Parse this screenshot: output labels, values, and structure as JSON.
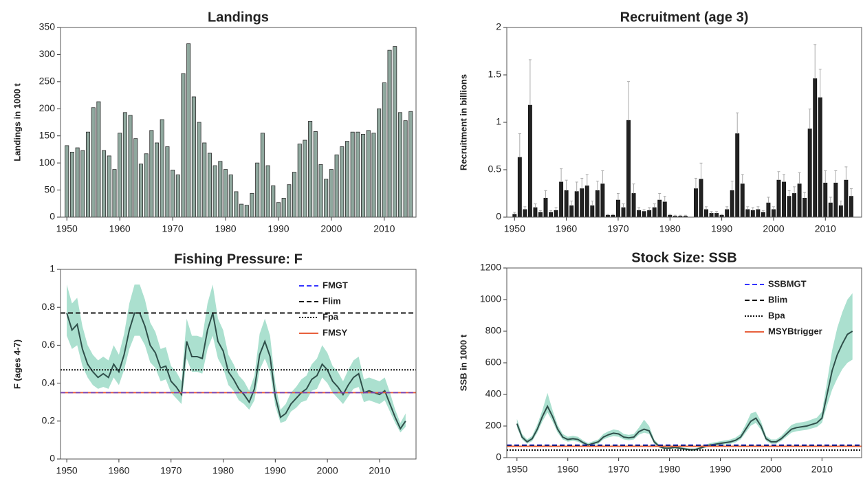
{
  "chart_data": [
    {
      "type": "bar",
      "title": "Landings",
      "ylabel": "Landings in 1000 t",
      "color": "#8fa89e",
      "edge_color": "#2b2b2b",
      "x": [
        1950,
        1951,
        1952,
        1953,
        1954,
        1955,
        1956,
        1957,
        1958,
        1959,
        1960,
        1961,
        1962,
        1963,
        1964,
        1965,
        1966,
        1967,
        1968,
        1969,
        1970,
        1971,
        1972,
        1973,
        1974,
        1975,
        1976,
        1977,
        1978,
        1979,
        1980,
        1981,
        1982,
        1983,
        1984,
        1985,
        1986,
        1987,
        1988,
        1989,
        1990,
        1991,
        1992,
        1993,
        1994,
        1995,
        1996,
        1997,
        1998,
        1999,
        2000,
        2001,
        2002,
        2003,
        2004,
        2005,
        2006,
        2007,
        2008,
        2009,
        2010,
        2011,
        2012,
        2013,
        2014,
        2015
      ],
      "values": [
        132,
        120,
        128,
        123,
        157,
        202,
        213,
        123,
        113,
        88,
        155,
        193,
        188,
        145,
        98,
        117,
        160,
        137,
        180,
        130,
        87,
        78,
        265,
        320,
        222,
        175,
        137,
        118,
        95,
        103,
        88,
        78,
        47,
        24,
        22,
        44,
        100,
        155,
        95,
        58,
        27,
        35,
        60,
        83,
        135,
        142,
        177,
        158,
        97,
        70,
        88,
        115,
        130,
        140,
        157,
        157,
        153,
        160,
        155,
        200,
        248,
        308,
        315,
        193,
        178,
        195
      ],
      "xlim": [
        1948.8,
        2016
      ],
      "ylim": [
        0,
        350
      ],
      "xticks": [
        1950,
        1960,
        1970,
        1980,
        1990,
        2000,
        2010
      ],
      "yticks": [
        0,
        50,
        100,
        150,
        200,
        250,
        300,
        350
      ]
    },
    {
      "type": "bar",
      "title": "Recruitment (age 3)",
      "ylabel": "Recruitment in billions",
      "color": "#222222",
      "edge_color": "#111111",
      "error_color": "#aaaaaa",
      "x": [
        1950,
        1951,
        1952,
        1953,
        1954,
        1955,
        1956,
        1957,
        1958,
        1959,
        1960,
        1961,
        1962,
        1963,
        1964,
        1965,
        1966,
        1967,
        1968,
        1969,
        1970,
        1971,
        1972,
        1973,
        1974,
        1975,
        1976,
        1977,
        1978,
        1979,
        1980,
        1981,
        1982,
        1983,
        1984,
        1985,
        1986,
        1987,
        1988,
        1989,
        1990,
        1991,
        1992,
        1993,
        1994,
        1995,
        1996,
        1997,
        1998,
        1999,
        2000,
        2001,
        2002,
        2003,
        2004,
        2005,
        2006,
        2007,
        2008,
        2009,
        2010,
        2011,
        2012,
        2013,
        2014,
        2015
      ],
      "values": [
        0.03,
        0.63,
        0.08,
        1.18,
        0.1,
        0.05,
        0.2,
        0.05,
        0.07,
        0.37,
        0.28,
        0.12,
        0.27,
        0.3,
        0.33,
        0.12,
        0.28,
        0.35,
        0.02,
        0.02,
        0.18,
        0.1,
        1.02,
        0.25,
        0.07,
        0.06,
        0.07,
        0.1,
        0.18,
        0.16,
        0.02,
        0.01,
        0.01,
        0.01,
        0.0,
        0.3,
        0.4,
        0.08,
        0.04,
        0.04,
        0.02,
        0.08,
        0.28,
        0.88,
        0.35,
        0.08,
        0.07,
        0.08,
        0.05,
        0.15,
        0.08,
        0.39,
        0.37,
        0.22,
        0.25,
        0.35,
        0.2,
        0.93,
        1.46,
        1.26,
        0.36,
        0.15,
        0.36,
        0.12,
        0.39,
        0.22
      ],
      "errors": [
        0.02,
        0.25,
        0.03,
        0.48,
        0.04,
        0.02,
        0.08,
        0.02,
        0.03,
        0.14,
        0.11,
        0.05,
        0.1,
        0.11,
        0.12,
        0.05,
        0.1,
        0.14,
        0.01,
        0.01,
        0.07,
        0.04,
        0.41,
        0.1,
        0.03,
        0.02,
        0.03,
        0.04,
        0.07,
        0.06,
        0.01,
        0.01,
        0.01,
        0.01,
        0.0,
        0.11,
        0.17,
        0.03,
        0.02,
        0.02,
        0.01,
        0.03,
        0.1,
        0.22,
        0.1,
        0.03,
        0.03,
        0.03,
        0.02,
        0.06,
        0.03,
        0.09,
        0.08,
        0.06,
        0.07,
        0.12,
        0.06,
        0.21,
        0.36,
        0.3,
        0.13,
        0.06,
        0.13,
        0.05,
        0.14,
        0.08
      ],
      "xlim": [
        1948.5,
        2017
      ],
      "ylim": [
        0,
        2
      ],
      "xticks": [
        1950,
        1960,
        1970,
        1980,
        1990,
        2000,
        2010
      ],
      "yticks": [
        0,
        0.5,
        1,
        1.5,
        2
      ]
    },
    {
      "type": "line",
      "title": "Fishing Pressure: F",
      "ylabel": "F (ages 4-7)",
      "color": "#2f4f4a",
      "band_color": "#8fd6bf",
      "legend": "upper right",
      "x": [
        1950,
        1951,
        1952,
        1953,
        1954,
        1955,
        1956,
        1957,
        1958,
        1959,
        1960,
        1961,
        1962,
        1963,
        1964,
        1965,
        1966,
        1967,
        1968,
        1969,
        1970,
        1971,
        1972,
        1973,
        1974,
        1975,
        1976,
        1977,
        1978,
        1979,
        1980,
        1981,
        1982,
        1983,
        1984,
        1985,
        1986,
        1987,
        1988,
        1989,
        1990,
        1991,
        1992,
        1993,
        1994,
        1995,
        1996,
        1997,
        1998,
        1999,
        2000,
        2001,
        2002,
        2003,
        2004,
        2005,
        2006,
        2007,
        2008,
        2009,
        2010,
        2011,
        2012,
        2013,
        2014,
        2015
      ],
      "values": [
        0.77,
        0.68,
        0.71,
        0.58,
        0.5,
        0.46,
        0.43,
        0.45,
        0.43,
        0.5,
        0.46,
        0.55,
        0.68,
        0.77,
        0.77,
        0.7,
        0.6,
        0.56,
        0.48,
        0.49,
        0.41,
        0.38,
        0.34,
        0.62,
        0.54,
        0.54,
        0.53,
        0.68,
        0.77,
        0.62,
        0.57,
        0.46,
        0.42,
        0.37,
        0.34,
        0.3,
        0.37,
        0.55,
        0.62,
        0.54,
        0.33,
        0.22,
        0.24,
        0.29,
        0.32,
        0.35,
        0.37,
        0.42,
        0.44,
        0.5,
        0.47,
        0.41,
        0.38,
        0.34,
        0.39,
        0.43,
        0.45,
        0.35,
        0.36,
        0.35,
        0.34,
        0.36,
        0.29,
        0.22,
        0.16,
        0.2
      ],
      "lower": [
        0.65,
        0.58,
        0.6,
        0.49,
        0.43,
        0.39,
        0.37,
        0.38,
        0.37,
        0.43,
        0.39,
        0.47,
        0.58,
        0.65,
        0.65,
        0.6,
        0.51,
        0.48,
        0.41,
        0.42,
        0.35,
        0.32,
        0.29,
        0.53,
        0.46,
        0.46,
        0.45,
        0.58,
        0.65,
        0.53,
        0.48,
        0.39,
        0.36,
        0.31,
        0.29,
        0.26,
        0.31,
        0.47,
        0.53,
        0.46,
        0.28,
        0.19,
        0.2,
        0.25,
        0.27,
        0.3,
        0.31,
        0.36,
        0.37,
        0.43,
        0.4,
        0.35,
        0.32,
        0.29,
        0.33,
        0.37,
        0.38,
        0.3,
        0.31,
        0.3,
        0.29,
        0.31,
        0.25,
        0.19,
        0.14,
        0.17
      ],
      "upper": [
        0.92,
        0.82,
        0.85,
        0.7,
        0.6,
        0.55,
        0.52,
        0.54,
        0.52,
        0.6,
        0.55,
        0.66,
        0.82,
        0.92,
        0.92,
        0.84,
        0.72,
        0.67,
        0.58,
        0.59,
        0.49,
        0.46,
        0.41,
        0.74,
        0.65,
        0.65,
        0.64,
        0.82,
        0.92,
        0.74,
        0.68,
        0.55,
        0.5,
        0.44,
        0.41,
        0.36,
        0.44,
        0.66,
        0.74,
        0.65,
        0.4,
        0.26,
        0.29,
        0.35,
        0.38,
        0.42,
        0.44,
        0.5,
        0.53,
        0.6,
        0.56,
        0.49,
        0.46,
        0.41,
        0.47,
        0.52,
        0.54,
        0.42,
        0.43,
        0.42,
        0.41,
        0.43,
        0.35,
        0.26,
        0.19,
        0.24
      ],
      "reference_lines": [
        {
          "name": "FMGT",
          "value": 0.35,
          "color": "#3333ff",
          "dash": "dashed"
        },
        {
          "name": "Flim",
          "value": 0.77,
          "color": "#111111",
          "dash": "dashed"
        },
        {
          "name": "Fpa",
          "value": 0.47,
          "color": "#111111",
          "dash": "dotted"
        },
        {
          "name": "FMSY",
          "value": 0.35,
          "color": "#e8603c",
          "dash": "solid"
        }
      ],
      "xlim": [
        1948.8,
        2017
      ],
      "ylim": [
        0,
        1
      ],
      "xticks": [
        1950,
        1960,
        1970,
        1980,
        1990,
        2000,
        2010
      ],
      "yticks": [
        0,
        0.2,
        0.4,
        0.6,
        0.8,
        1
      ]
    },
    {
      "type": "line",
      "title": "Stock Size: SSB",
      "ylabel": "SSB in 1000 t",
      "color": "#2f4f4a",
      "band_color": "#8fd6bf",
      "legend": "upper right",
      "x": [
        1950,
        1951,
        1952,
        1953,
        1954,
        1955,
        1956,
        1957,
        1958,
        1959,
        1960,
        1961,
        1962,
        1963,
        1964,
        1965,
        1966,
        1967,
        1968,
        1969,
        1970,
        1971,
        1972,
        1973,
        1974,
        1975,
        1976,
        1977,
        1978,
        1979,
        1980,
        1981,
        1982,
        1983,
        1984,
        1985,
        1986,
        1987,
        1988,
        1989,
        1990,
        1991,
        1992,
        1993,
        1994,
        1995,
        1996,
        1997,
        1998,
        1999,
        2000,
        2001,
        2002,
        2003,
        2004,
        2005,
        2006,
        2007,
        2008,
        2009,
        2010,
        2011,
        2012,
        2013,
        2014,
        2015,
        2016
      ],
      "values": [
        215,
        130,
        100,
        120,
        180,
        260,
        325,
        260,
        180,
        130,
        115,
        120,
        115,
        95,
        80,
        90,
        100,
        130,
        145,
        155,
        150,
        130,
        125,
        130,
        165,
        180,
        170,
        100,
        70,
        60,
        60,
        65,
        60,
        55,
        50,
        50,
        60,
        70,
        80,
        85,
        90,
        95,
        100,
        110,
        130,
        180,
        230,
        250,
        200,
        120,
        100,
        100,
        120,
        150,
        180,
        190,
        195,
        200,
        210,
        220,
        250,
        400,
        550,
        650,
        720,
        780,
        800
      ],
      "lower": [
        190,
        115,
        88,
        105,
        158,
        229,
        286,
        229,
        158,
        115,
        101,
        106,
        101,
        84,
        70,
        79,
        88,
        115,
        128,
        136,
        132,
        115,
        110,
        115,
        145,
        158,
        150,
        88,
        62,
        53,
        53,
        57,
        53,
        48,
        44,
        44,
        53,
        62,
        70,
        75,
        79,
        84,
        88,
        97,
        115,
        158,
        202,
        220,
        176,
        106,
        88,
        88,
        106,
        132,
        158,
        167,
        172,
        176,
        185,
        194,
        220,
        330,
        430,
        500,
        560,
        600,
        620
      ],
      "upper": [
        245,
        150,
        115,
        138,
        210,
        300,
        410,
        300,
        207,
        150,
        132,
        138,
        132,
        109,
        92,
        104,
        115,
        150,
        167,
        178,
        173,
        150,
        144,
        150,
        190,
        240,
        200,
        115,
        81,
        69,
        69,
        75,
        69,
        63,
        58,
        58,
        69,
        81,
        92,
        98,
        104,
        109,
        115,
        127,
        150,
        210,
        280,
        290,
        230,
        138,
        115,
        115,
        138,
        173,
        207,
        219,
        224,
        230,
        242,
        253,
        290,
        480,
        680,
        820,
        920,
        1000,
        1040
      ],
      "reference_lines": [
        {
          "name": "SSBMGT",
          "value": 80,
          "color": "#3333ff",
          "dash": "dashed"
        },
        {
          "name": "Blim",
          "value": 78,
          "color": "#111111",
          "dash": "dashed"
        },
        {
          "name": "Bpa",
          "value": 48,
          "color": "#111111",
          "dash": "dotted"
        },
        {
          "name": "MSYBtrigger",
          "value": 72,
          "color": "#e8603c",
          "dash": "solid"
        }
      ],
      "xlim": [
        1948,
        2017.8
      ],
      "ylim": [
        0,
        1200
      ],
      "xticks": [
        1950,
        1960,
        1970,
        1980,
        1990,
        2000,
        2010
      ],
      "yticks": [
        0,
        200,
        400,
        600,
        800,
        1000,
        1200
      ]
    }
  ]
}
